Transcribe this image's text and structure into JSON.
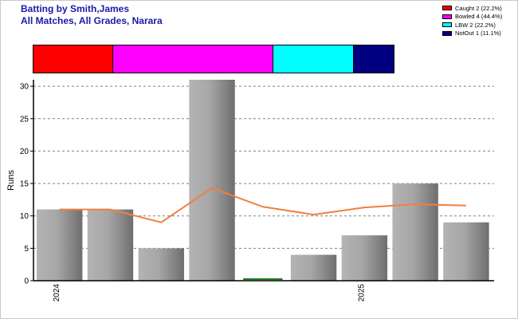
{
  "header": {
    "title_line1": "Batting by Smith,James",
    "title_line2": "All Matches, All Grades, Narara"
  },
  "legend": [
    {
      "label": "Caught 2 (22.2%)",
      "color": "#ff0000"
    },
    {
      "label": "Bowled 4 (44.4%)",
      "color": "#ff00ff"
    },
    {
      "label": "LBW 2 (22.2%)",
      "color": "#00ffff"
    },
    {
      "label": "NotOut 1 (11.1%)",
      "color": "#000080"
    }
  ],
  "chart_data": {
    "type": "bar",
    "ylabel": "Runs",
    "ylim": [
      0,
      31
    ],
    "yticks": [
      0,
      5,
      10,
      15,
      20,
      25,
      30
    ],
    "grid": true,
    "x_tick_labels": [
      {
        "index": 0,
        "label": "2024"
      },
      {
        "index": 6,
        "label": "2025"
      }
    ],
    "series": [
      {
        "values": [
          11,
          11,
          5,
          31,
          0,
          4,
          7,
          15,
          9
        ]
      },
      {
        "type": "line",
        "values": [
          11,
          11,
          9,
          14.3,
          11.4,
          10.2,
          11.3,
          11.8,
          11.6
        ],
        "color": "#f08040"
      }
    ],
    "bar_color": "#a8a8a8",
    "zero_bar_color": "#1a7a1a",
    "dismissal_breakdown": {
      "type": "stacked-bar",
      "segments": [
        {
          "name": "Caught",
          "count": 2,
          "percent": 22.2,
          "color": "#ff0000"
        },
        {
          "name": "Bowled",
          "count": 4,
          "percent": 44.4,
          "color": "#ff00ff"
        },
        {
          "name": "LBW",
          "count": 2,
          "percent": 22.2,
          "color": "#00ffff"
        },
        {
          "name": "NotOut",
          "count": 1,
          "percent": 11.1,
          "color": "#000080"
        }
      ]
    }
  }
}
